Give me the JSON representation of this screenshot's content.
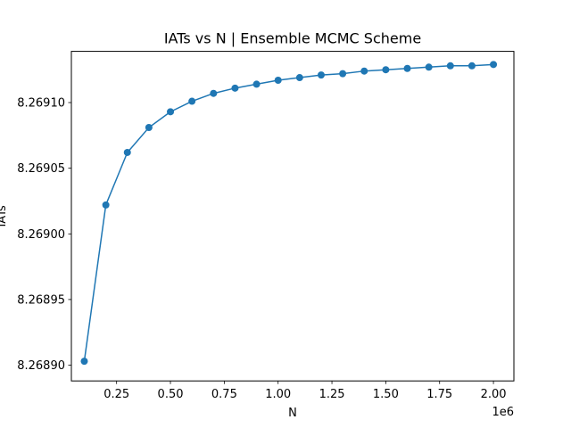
{
  "chart_data": {
    "type": "line",
    "title": "IATs vs N | Ensemble MCMC Scheme",
    "xlabel": "N",
    "ylabel": "IATs",
    "x_offset_label": "1e6",
    "x_scale_factor": 1000000,
    "xlim": [
      0.04,
      2.095
    ],
    "ylim": [
      8.268888,
      8.269139
    ],
    "grid": false,
    "legend": "none",
    "marker": "circle",
    "series_color": "#1f77b4",
    "x_ticks": [
      {
        "value": 0.25,
        "label": "0.25"
      },
      {
        "value": 0.5,
        "label": "0.50"
      },
      {
        "value": 0.75,
        "label": "0.75"
      },
      {
        "value": 1.0,
        "label": "1.00"
      },
      {
        "value": 1.25,
        "label": "1.25"
      },
      {
        "value": 1.5,
        "label": "1.50"
      },
      {
        "value": 1.75,
        "label": "1.75"
      },
      {
        "value": 2.0,
        "label": "2.00"
      }
    ],
    "y_ticks": [
      {
        "value": 8.2689,
        "label": "8.26890"
      },
      {
        "value": 8.26895,
        "label": "8.26895"
      },
      {
        "value": 8.269,
        "label": "8.26900"
      },
      {
        "value": 8.26905,
        "label": "8.26905"
      },
      {
        "value": 8.2691,
        "label": "8.26910"
      }
    ],
    "series": [
      {
        "x": [
          100000,
          200000,
          300000,
          400000,
          500000,
          600000,
          700000,
          800000,
          900000,
          1000000,
          1100000,
          1200000,
          1300000,
          1400000,
          1500000,
          1600000,
          1700000,
          1800000,
          1900000,
          2000000
        ],
        "values": [
          8.268903,
          8.269022,
          8.269062,
          8.269081,
          8.269093,
          8.269101,
          8.269107,
          8.269111,
          8.269114,
          8.269117,
          8.269119,
          8.269121,
          8.269122,
          8.269124,
          8.269125,
          8.269126,
          8.269127,
          8.269128,
          8.269128,
          8.269129
        ]
      }
    ]
  }
}
